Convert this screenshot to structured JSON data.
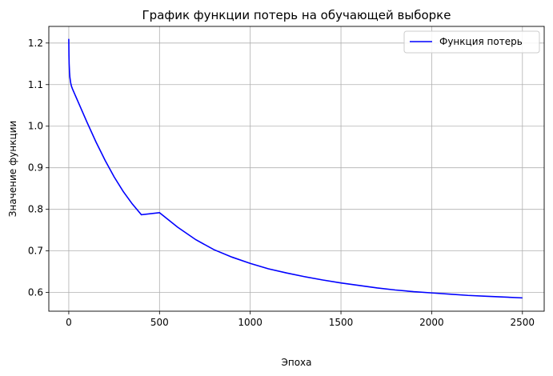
{
  "chart_data": {
    "type": "line",
    "title": "График функции потерь на обучающей выборке",
    "xlabel": "Эпоха",
    "ylabel": "Значение функции",
    "xlim": [
      -110,
      2620
    ],
    "ylim": [
      0.555,
      1.24
    ],
    "xticks": [
      0,
      500,
      1000,
      1500,
      2000,
      2500
    ],
    "xtick_labels": [
      "0",
      "500",
      "1000",
      "1500",
      "2000",
      "2500"
    ],
    "yticks": [
      0.6,
      0.7,
      0.8,
      0.9,
      1.0,
      1.1,
      1.2
    ],
    "ytick_labels": [
      "0.6",
      "0.7",
      "0.8",
      "0.9",
      "1.0",
      "1.1",
      "1.2"
    ],
    "grid": true,
    "legend_position": "top-right",
    "series": [
      {
        "name": "Функция потерь",
        "color": "#0000ff",
        "x": [
          0,
          1,
          2,
          4,
          6,
          10,
          15,
          20,
          30,
          50,
          75,
          100,
          150,
          200,
          250,
          300,
          350,
          400,
          500,
          600,
          700,
          800,
          900,
          1000,
          1100,
          1200,
          1300,
          1400,
          1500,
          1600,
          1700,
          1800,
          1900,
          2000,
          2100,
          2200,
          2300,
          2400,
          2500
        ],
        "y": [
          1.21,
          1.17,
          1.15,
          1.13,
          1.118,
          1.105,
          1.096,
          1.09,
          1.08,
          1.06,
          1.035,
          1.01,
          0.962,
          0.918,
          0.878,
          0.843,
          0.813,
          0.787,
          0.792,
          0.757,
          0.727,
          0.703,
          0.685,
          0.67,
          0.657,
          0.647,
          0.638,
          0.63,
          0.623,
          0.617,
          0.611,
          0.606,
          0.602,
          0.599,
          0.596,
          0.593,
          0.591,
          0.589,
          0.587
        ]
      }
    ]
  }
}
